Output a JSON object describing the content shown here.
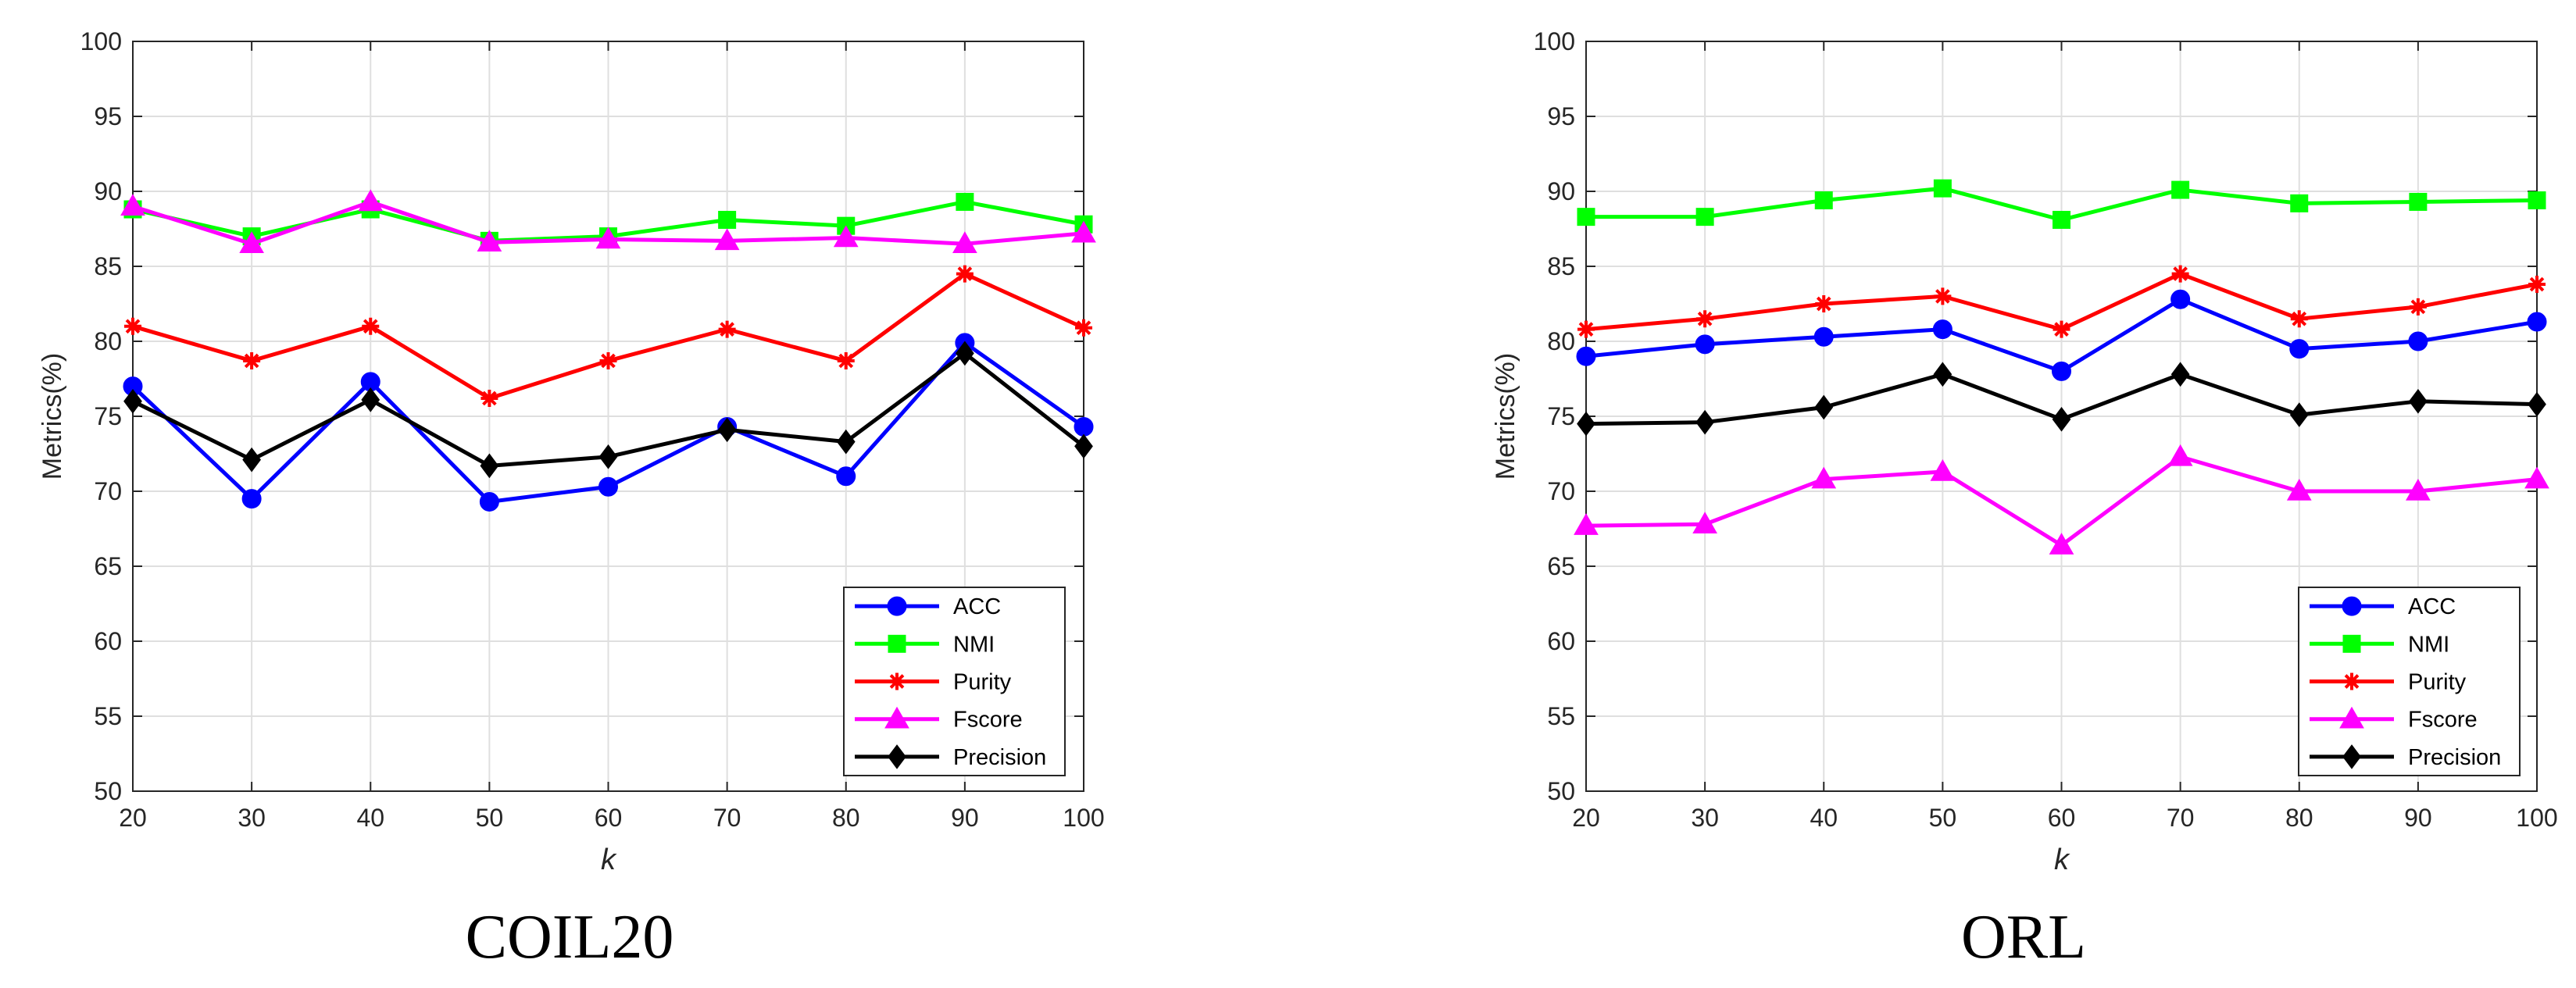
{
  "chart_data": [
    {
      "type": "line",
      "caption": "COIL20",
      "xlabel": "k",
      "ylabel": "Metrics(%)",
      "x": [
        20,
        30,
        40,
        50,
        60,
        70,
        80,
        90,
        100
      ],
      "xlim": [
        20,
        100
      ],
      "ylim": [
        50,
        100
      ],
      "xticks": [
        20,
        30,
        40,
        50,
        60,
        70,
        80,
        90,
        100
      ],
      "yticks": [
        50,
        55,
        60,
        65,
        70,
        75,
        80,
        85,
        90,
        95,
        100
      ],
      "grid": true,
      "legend_position": "bottom-right",
      "series": [
        {
          "name": "ACC",
          "color": "#0000ff",
          "marker": "circle",
          "values": [
            77.0,
            69.5,
            77.3,
            69.3,
            70.3,
            74.3,
            71.0,
            79.9,
            74.3
          ]
        },
        {
          "name": "NMI",
          "color": "#00ff00",
          "marker": "square",
          "values": [
            88.8,
            87.0,
            88.8,
            86.7,
            87.0,
            88.1,
            87.7,
            89.3,
            87.8
          ]
        },
        {
          "name": "Purity",
          "color": "#ff0000",
          "marker": "asterisk",
          "values": [
            81.0,
            78.7,
            81.0,
            76.2,
            78.7,
            80.8,
            78.7,
            84.5,
            80.9
          ]
        },
        {
          "name": "Fscore",
          "color": "#ff00ff",
          "marker": "triangle",
          "values": [
            89.0,
            86.5,
            89.3,
            86.6,
            86.8,
            86.7,
            86.9,
            86.5,
            87.2
          ]
        },
        {
          "name": "Precision",
          "color": "#000000",
          "marker": "diamond",
          "values": [
            76.0,
            72.1,
            76.1,
            71.7,
            72.3,
            74.1,
            73.3,
            79.2,
            73.0
          ]
        }
      ]
    },
    {
      "type": "line",
      "caption": "ORL",
      "xlabel": "k",
      "ylabel": "Metrics(%)",
      "x": [
        20,
        30,
        40,
        50,
        60,
        70,
        80,
        90,
        100
      ],
      "xlim": [
        20,
        100
      ],
      "ylim": [
        50,
        100
      ],
      "xticks": [
        20,
        30,
        40,
        50,
        60,
        70,
        80,
        90,
        100
      ],
      "yticks": [
        50,
        55,
        60,
        65,
        70,
        75,
        80,
        85,
        90,
        95,
        100
      ],
      "grid": true,
      "legend_position": "bottom-right",
      "series": [
        {
          "name": "ACC",
          "color": "#0000ff",
          "marker": "circle",
          "values": [
            79.0,
            79.8,
            80.3,
            80.8,
            78.0,
            82.8,
            79.5,
            80.0,
            81.3
          ]
        },
        {
          "name": "NMI",
          "color": "#00ff00",
          "marker": "square",
          "values": [
            88.3,
            88.3,
            89.4,
            90.2,
            88.1,
            90.1,
            89.2,
            89.3,
            89.4
          ]
        },
        {
          "name": "Purity",
          "color": "#ff0000",
          "marker": "asterisk",
          "values": [
            80.8,
            81.5,
            82.5,
            83.0,
            80.8,
            84.5,
            81.5,
            82.3,
            83.8
          ]
        },
        {
          "name": "Fscore",
          "color": "#ff00ff",
          "marker": "triangle",
          "values": [
            67.7,
            67.8,
            70.8,
            71.3,
            66.4,
            72.3,
            70.0,
            70.0,
            70.8
          ]
        },
        {
          "name": "Precision",
          "color": "#000000",
          "marker": "diamond",
          "values": [
            74.5,
            74.6,
            75.6,
            77.8,
            74.8,
            77.8,
            75.1,
            76.0,
            75.8
          ]
        }
      ]
    }
  ]
}
